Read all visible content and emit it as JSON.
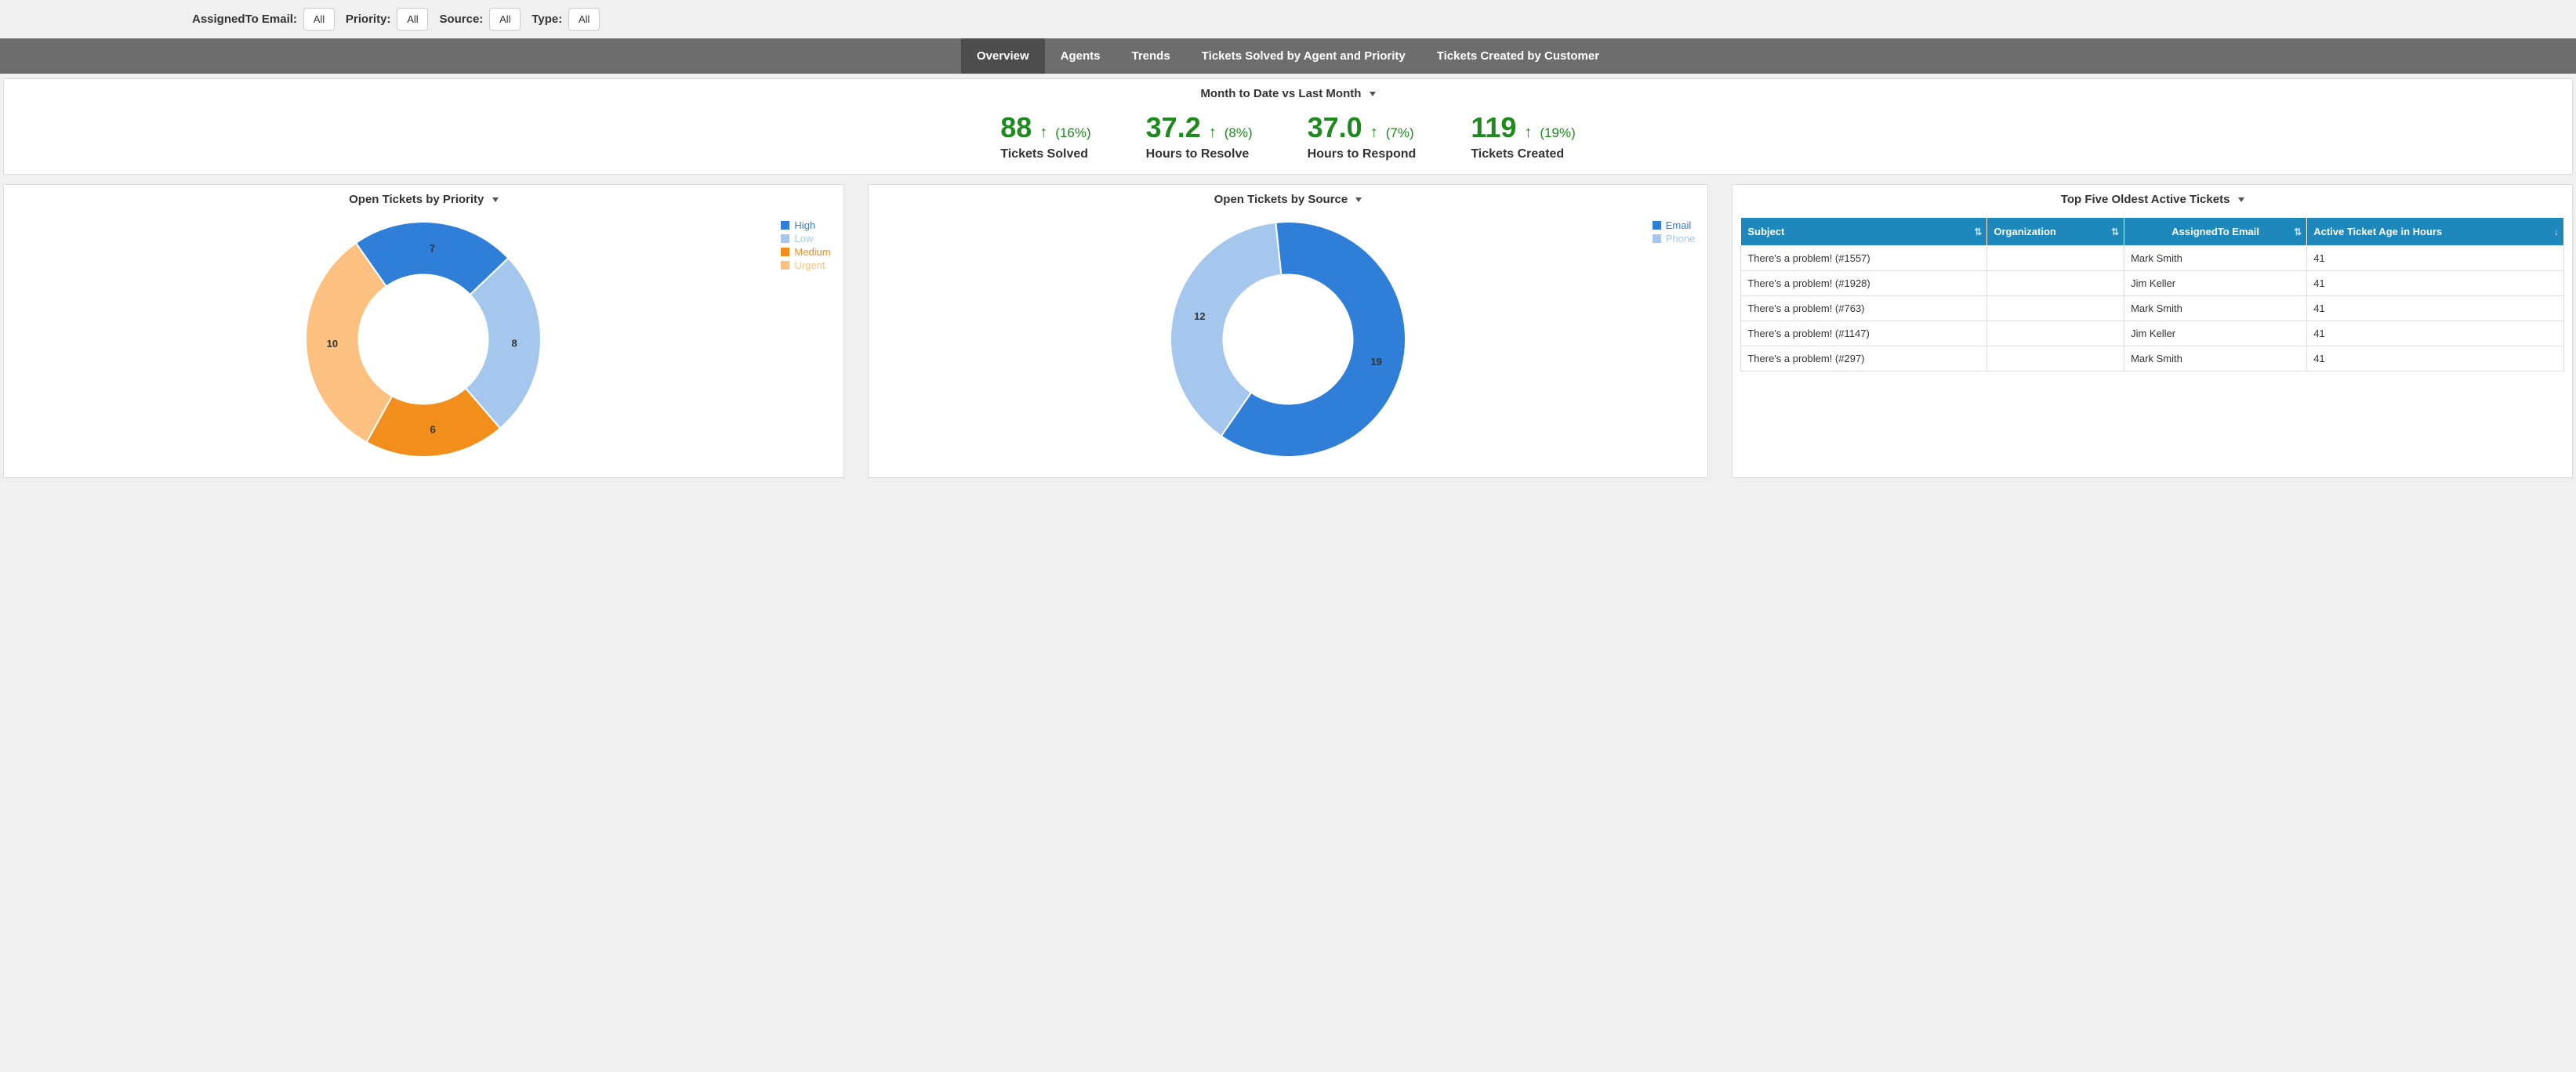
{
  "filters": [
    {
      "label": "AssignedTo Email:",
      "value": "All"
    },
    {
      "label": "Priority:",
      "value": "All"
    },
    {
      "label": "Source:",
      "value": "All"
    },
    {
      "label": "Type:",
      "value": "All"
    }
  ],
  "tabs": [
    {
      "label": "Overview",
      "active": true
    },
    {
      "label": "Agents",
      "active": false
    },
    {
      "label": "Trends",
      "active": false
    },
    {
      "label": "Tickets Solved by Agent and Priority",
      "active": false
    },
    {
      "label": "Tickets Created by Customer",
      "active": false
    }
  ],
  "kpi_panel": {
    "title": "Month to Date vs Last Month",
    "metrics": [
      {
        "value": "88",
        "direction": "up",
        "delta": "(16%)",
        "label": "Tickets Solved",
        "color": "#1d8a1d"
      },
      {
        "value": "37.2",
        "direction": "up",
        "delta": "(8%)",
        "label": "Hours to Resolve",
        "color": "#1d8a1d"
      },
      {
        "value": "37.0",
        "direction": "up",
        "delta": "(7%)",
        "label": "Hours to Respond",
        "color": "#1d8a1d"
      },
      {
        "value": "119",
        "direction": "up",
        "delta": "(19%)",
        "label": "Tickets Created",
        "color": "#1d8a1d"
      }
    ]
  },
  "donut_priority": {
    "title": "Open Tickets by Priority",
    "type": "donut",
    "inner_radius_ratio": 0.55,
    "background_color": "#ffffff",
    "label_fontsize": 13,
    "slices": [
      {
        "name": "High",
        "value": 7,
        "color": "#2f7ed8"
      },
      {
        "name": "Low",
        "value": 8,
        "color": "#a6c7ed"
      },
      {
        "name": "Medium",
        "value": 6,
        "color": "#f28e1c"
      },
      {
        "name": "Urgent",
        "value": 10,
        "color": "#fcc180"
      }
    ],
    "legend_position": "top-right",
    "start_angle_deg": -35
  },
  "donut_source": {
    "title": "Open Tickets by Source",
    "type": "donut",
    "inner_radius_ratio": 0.55,
    "background_color": "#ffffff",
    "label_fontsize": 13,
    "slices": [
      {
        "name": "Email",
        "value": 19,
        "color": "#2f7ed8"
      },
      {
        "name": "Phone",
        "value": 12,
        "color": "#a6c7ed"
      }
    ],
    "legend_position": "top-right",
    "start_angle_deg": -6
  },
  "tickets_table": {
    "title": "Top Five Oldest Active Tickets",
    "header_bg": "#1e87bb",
    "header_fg": "#ffffff",
    "columns": [
      {
        "label": "Subject",
        "sortable": true,
        "sorted": "none"
      },
      {
        "label": "Organization",
        "sortable": true,
        "sorted": "none"
      },
      {
        "label": "AssignedTo Email",
        "sortable": true,
        "sorted": "none",
        "align": "center"
      },
      {
        "label": "Active Ticket Age in Hours",
        "sortable": true,
        "sorted": "desc"
      }
    ],
    "rows": [
      {
        "subject": "There's a problem! (#1557)",
        "organization": "",
        "assigned": "Mark Smith",
        "age": "41"
      },
      {
        "subject": "There's a problem! (#1928)",
        "organization": "",
        "assigned": "Jim Keller",
        "age": "41"
      },
      {
        "subject": "There's a problem! (#763)",
        "organization": "",
        "assigned": "Mark Smith",
        "age": "41"
      },
      {
        "subject": "There's a problem! (#1147)",
        "organization": "",
        "assigned": "Jim Keller",
        "age": "41"
      },
      {
        "subject": "There's a problem! (#297)",
        "organization": "",
        "assigned": "Mark Smith",
        "age": "41"
      }
    ]
  }
}
